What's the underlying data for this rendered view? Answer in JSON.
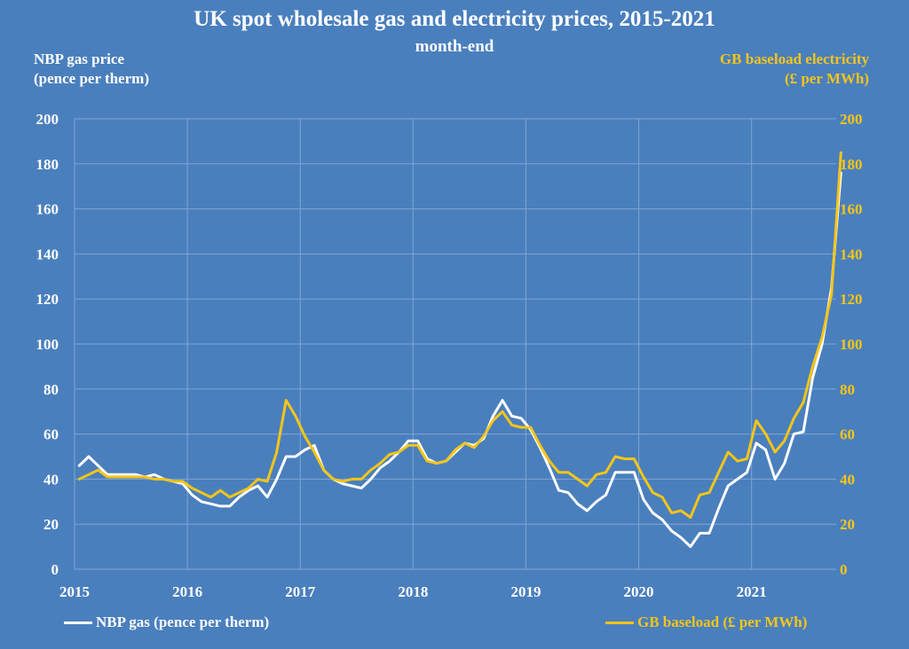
{
  "colors": {
    "background": "#4a7fbd",
    "gas": "#ffffff",
    "electricity": "#f5c518",
    "grid": "#7fa6d6"
  },
  "chart_data": {
    "type": "line",
    "title": "UK spot wholesale gas and electricity prices, 2015-2021",
    "subtitle": "month-end",
    "ylabel_left": [
      "NBP gas price",
      "(pence per therm)"
    ],
    "ylabel_right": [
      "GB baseload electricity",
      "(£ per MWh)"
    ],
    "ylim": [
      0,
      200
    ],
    "yticks": [
      0,
      20,
      40,
      60,
      80,
      100,
      120,
      140,
      160,
      180,
      200
    ],
    "xlim": [
      2015,
      2021.75
    ],
    "xticks": [
      "2015",
      "2016",
      "2017",
      "2018",
      "2019",
      "2020",
      "2021"
    ],
    "grid": true,
    "legend_position": "bottom",
    "series": [
      {
        "name": "NBP gas (pence per therm)",
        "axis": "left",
        "x_start": 2015,
        "step": "month",
        "values": [
          46,
          50,
          46,
          42,
          42,
          42,
          42,
          41,
          42,
          40,
          39,
          38,
          33,
          30,
          29,
          28,
          28,
          32,
          35,
          37,
          32,
          40,
          50,
          50,
          53,
          55,
          44,
          40,
          38,
          37,
          36,
          40,
          45,
          48,
          52,
          57,
          57,
          49,
          47,
          48,
          52,
          56,
          55,
          58,
          68,
          75,
          68,
          67,
          62,
          54,
          45,
          35,
          34,
          29,
          26,
          30,
          33,
          43,
          43,
          43,
          31,
          25,
          22,
          17,
          14,
          10,
          16,
          16,
          27,
          37,
          40,
          43,
          56,
          53,
          40,
          47,
          60,
          61,
          85,
          100,
          125,
          176
        ]
      },
      {
        "name": "GB baseload (£ per MWh)",
        "axis": "right",
        "x_start": 2015,
        "step": "month",
        "values": [
          40,
          42,
          44,
          41,
          41,
          41,
          41,
          41,
          40,
          40,
          39,
          39,
          36,
          34,
          32,
          35,
          32,
          34,
          36,
          40,
          39,
          52,
          75,
          68,
          59,
          52,
          44,
          40,
          39,
          40,
          40,
          44,
          47,
          51,
          52,
          55,
          55,
          48,
          47,
          48,
          53,
          56,
          54,
          59,
          66,
          70,
          64,
          63,
          63,
          55,
          48,
          43,
          43,
          40,
          37,
          42,
          43,
          50,
          49,
          49,
          41,
          34,
          32,
          25,
          26,
          23,
          33,
          34,
          43,
          52,
          48,
          49,
          66,
          60,
          52,
          57,
          67,
          74,
          90,
          103,
          122,
          185
        ]
      }
    ]
  }
}
